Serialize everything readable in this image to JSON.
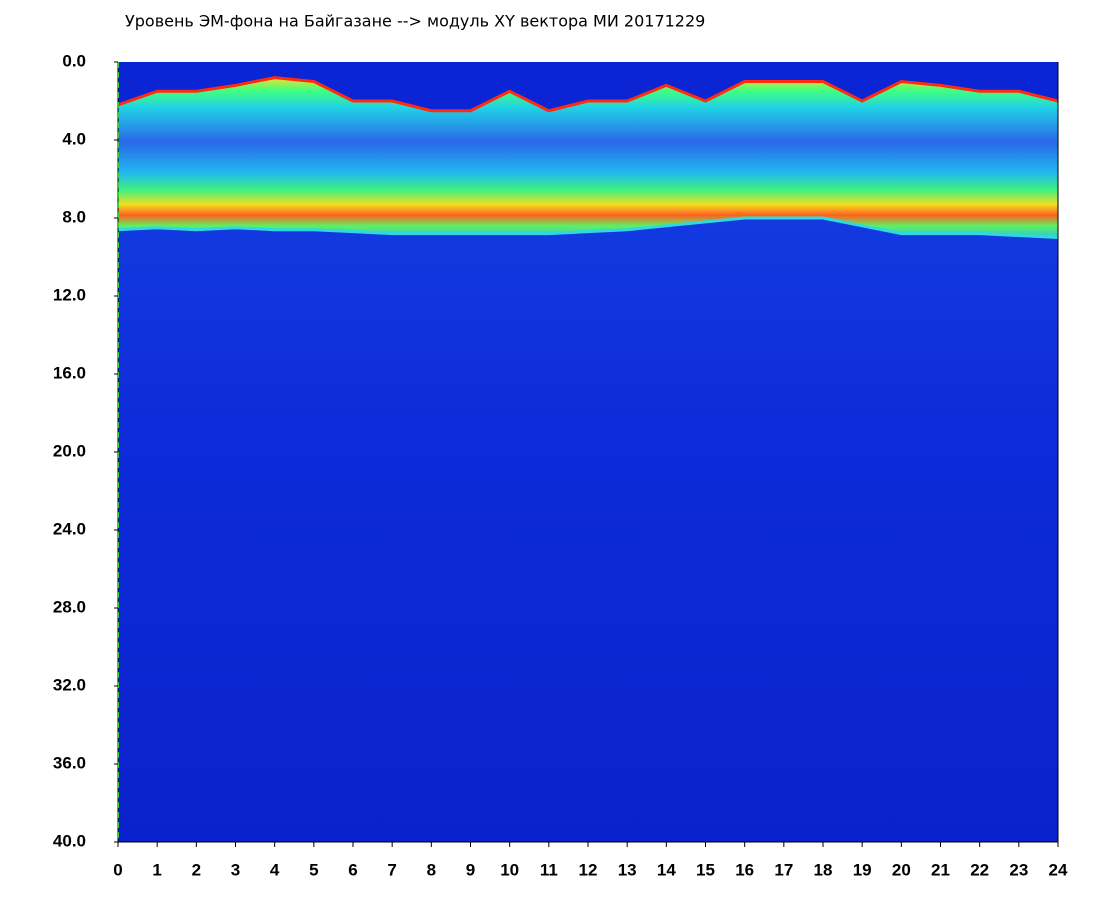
{
  "chart_data": {
    "type": "spectrogram",
    "title": "Уровень ЭМ-фона на Байгазане  --> модуль XY вектора МИ  20171229",
    "x": [
      0,
      1,
      2,
      3,
      4,
      5,
      6,
      7,
      8,
      9,
      10,
      11,
      12,
      13,
      14,
      15,
      16,
      17,
      18,
      19,
      20,
      21,
      22,
      23,
      24
    ],
    "signal_top": [
      2.2,
      1.5,
      1.5,
      1.2,
      0.8,
      1.0,
      2.0,
      2.0,
      2.5,
      2.5,
      1.5,
      2.5,
      2.0,
      2.0,
      1.2,
      2.0,
      1.0,
      1.0,
      1.0,
      2.0,
      1.0,
      1.2,
      1.5,
      1.5,
      2.0
    ],
    "band_bottom": [
      8.6,
      8.5,
      8.6,
      8.5,
      8.6,
      8.6,
      8.7,
      8.8,
      8.8,
      8.8,
      8.8,
      8.8,
      8.7,
      8.6,
      8.4,
      8.2,
      8.0,
      8.0,
      8.0,
      8.4,
      8.8,
      8.8,
      8.8,
      8.9,
      9.0
    ],
    "background_color": "#0b24d4",
    "xlim": [
      0,
      24
    ],
    "xticks": [
      0,
      1,
      2,
      3,
      4,
      5,
      6,
      7,
      8,
      9,
      10,
      11,
      12,
      13,
      14,
      15,
      16,
      17,
      18,
      19,
      20,
      21,
      22,
      23,
      24
    ],
    "ylim": [
      0,
      40
    ],
    "y_inverted": true,
    "yticks": [
      {
        "value": 0,
        "label": "0.0"
      },
      {
        "value": 4,
        "label": "4.0"
      },
      {
        "value": 8,
        "label": "8.0"
      },
      {
        "value": 12,
        "label": "12.0"
      },
      {
        "value": 16,
        "label": "16.0"
      },
      {
        "value": 20,
        "label": "20.0"
      },
      {
        "value": 24,
        "label": "24.0"
      },
      {
        "value": 28,
        "label": "28.0"
      },
      {
        "value": 32,
        "label": "32.0"
      },
      {
        "value": 36,
        "label": "36.0"
      },
      {
        "value": 40,
        "label": "40.0"
      }
    ]
  }
}
